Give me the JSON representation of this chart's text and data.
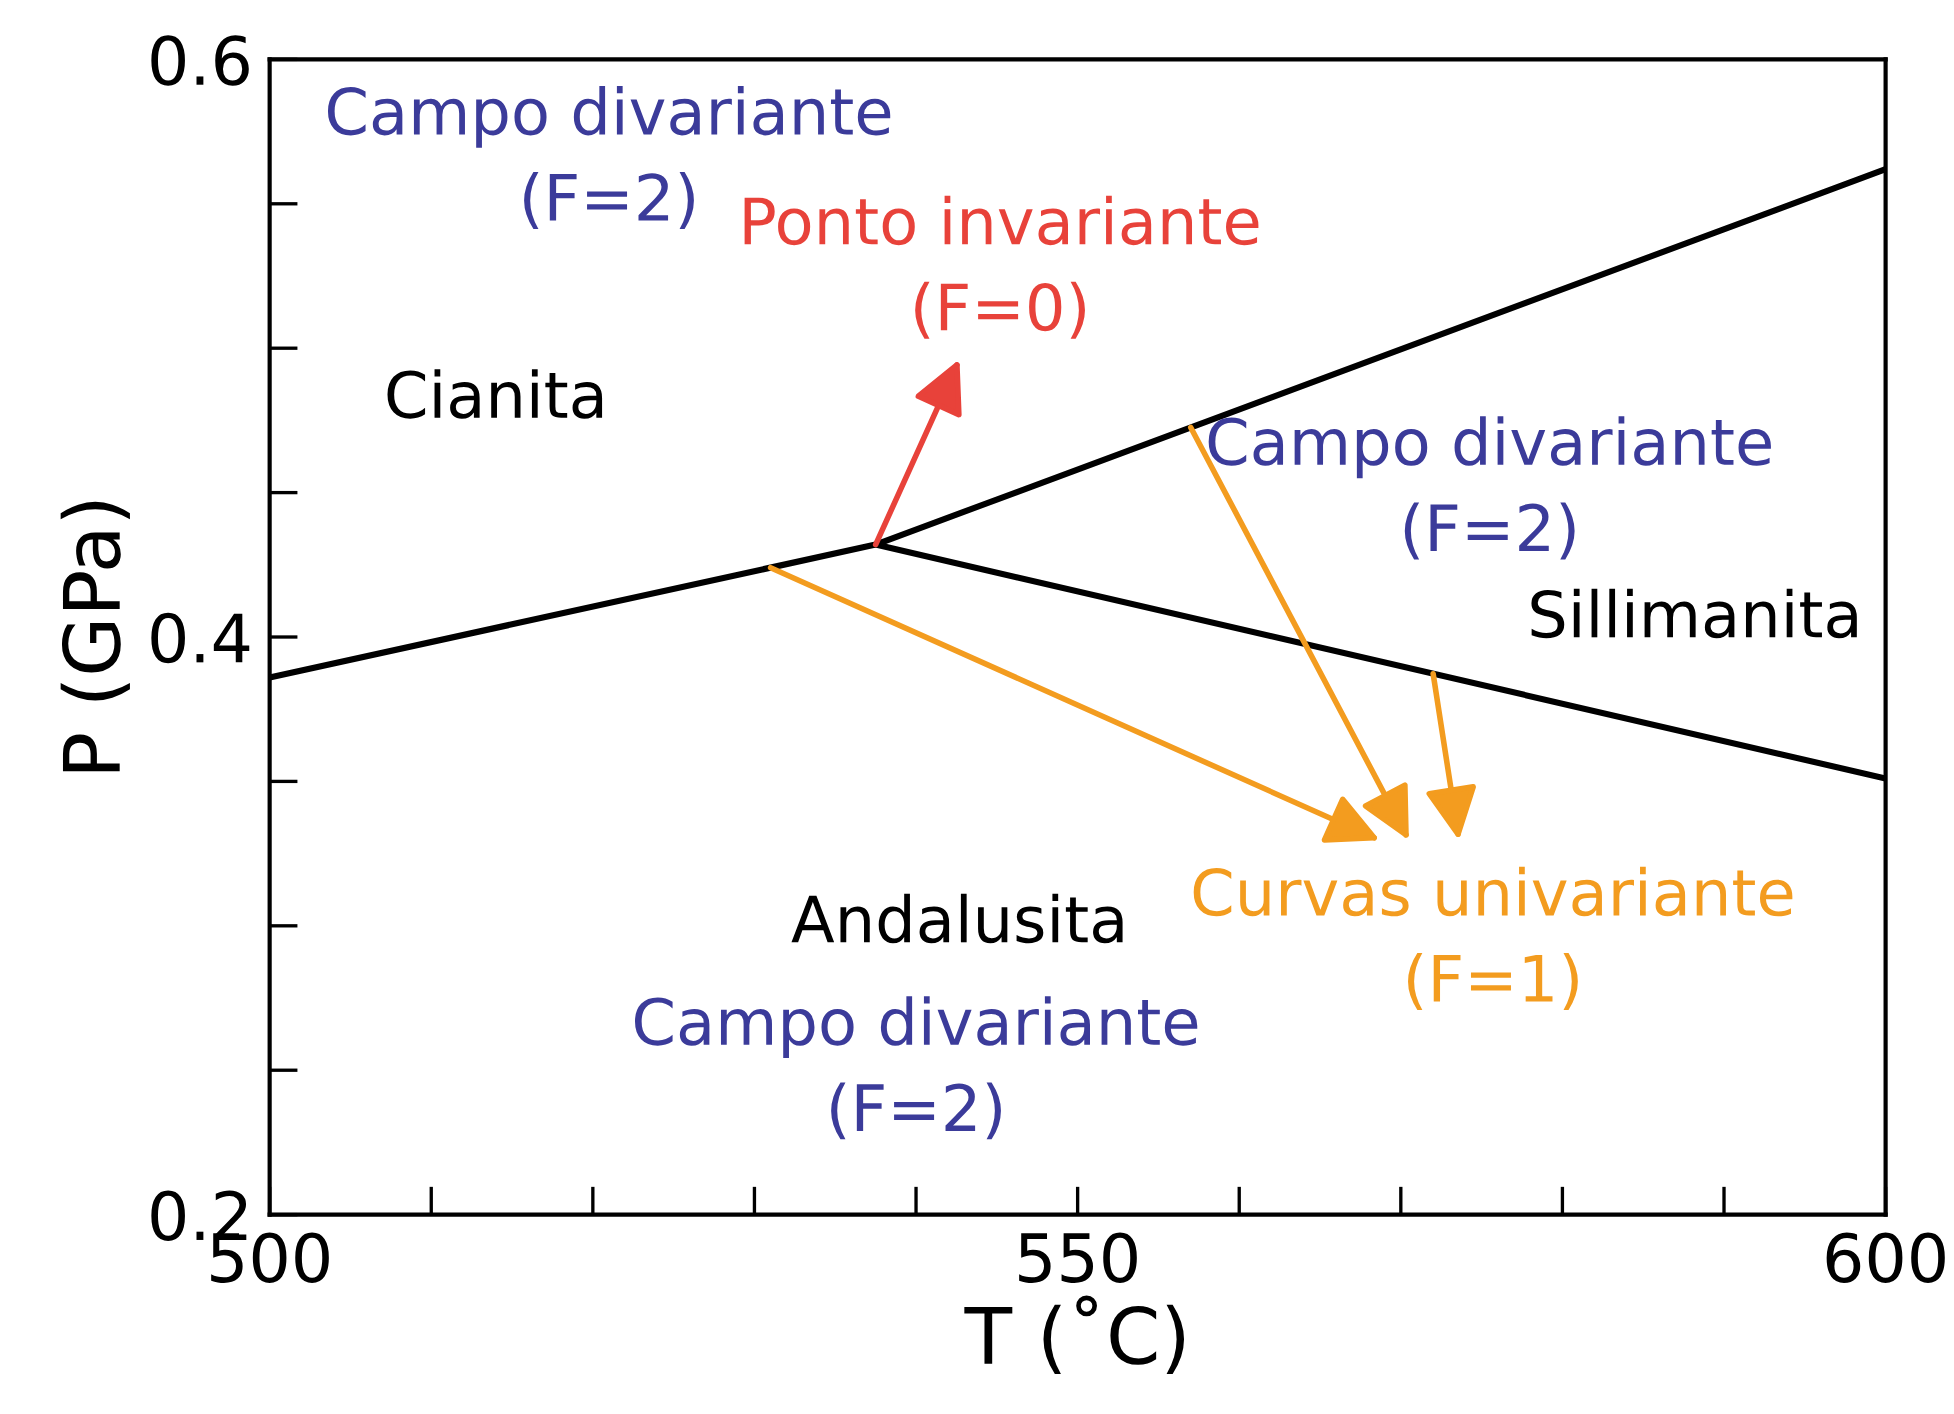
{
  "chart_data": {
    "type": "line",
    "xlabel": "T (˚C)",
    "ylabel": "P (GPa)",
    "series": [
      {
        "color": "#000000",
        "x": [
          500,
          537.5,
          600
        ],
        "values": [
          0.386,
          0.432,
          0.562
        ]
      },
      {
        "color": "#000000",
        "x": [
          537.5,
          600
        ],
        "values": [
          0.432,
          0.351
        ]
      }
    ],
    "xlim": [
      500,
      600
    ],
    "ylim": [
      0.2,
      0.6
    ],
    "xticks": [
      500,
      {
        "value": 510,
        "label": null
      },
      {
        "value": 520,
        "label": null
      },
      {
        "value": 530,
        "label": null
      },
      {
        "value": 540,
        "label": null
      },
      550,
      {
        "value": 560,
        "label": null
      },
      {
        "value": 570,
        "label": null
      },
      {
        "value": 580,
        "label": null
      },
      {
        "value": 590,
        "label": null
      },
      600
    ],
    "yticks": [
      0.2,
      {
        "value": 0.25,
        "label": null
      },
      {
        "value": 0.3,
        "label": null
      },
      {
        "value": 0.35,
        "label": null
      },
      0.4,
      {
        "value": 0.45,
        "label": null
      },
      {
        "value": 0.5,
        "label": null
      },
      {
        "value": 0.55,
        "label": null
      },
      0.6
    ],
    "grid": false,
    "legend": false,
    "marker": "none",
    "line_style": "solid",
    "annotations": [
      "Campo divariante\n(F=2)",
      {
        "text": "Ponto invariante\n(F=0)",
        "x": 537.5,
        "y": 0.432
      },
      "Cianita",
      "Campo divariante\n(F=2)",
      "Sillimanita",
      "Andalusita",
      "Campo divariante\n(F=2)",
      {
        "text": "Curvas univariante\n(F=1)",
        "x": 531,
        "y": 0.424
      }
    ]
  }
}
